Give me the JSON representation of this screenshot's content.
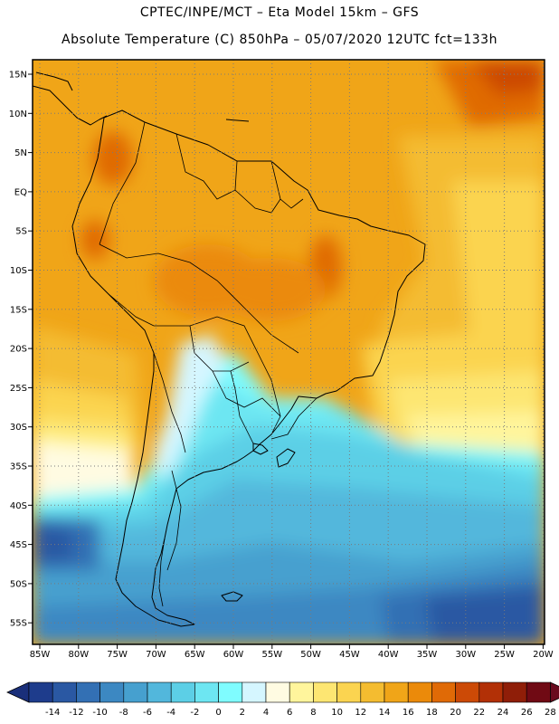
{
  "header": {
    "line1": "CPTEC/INPE/MCT –  Eta Model 15km – GFS",
    "line2": "Absolute Temperature (C) 850hPa – 05/07/2020 12UTC fct=133h"
  },
  "map": {
    "lat_labels": [
      "15N",
      "10N",
      "5N",
      "EQ",
      "5S",
      "10S",
      "15S",
      "20S",
      "25S",
      "30S",
      "35S",
      "40S",
      "45S",
      "50S",
      "55S"
    ],
    "lon_labels": [
      "85W",
      "80W",
      "75W",
      "70W",
      "65W",
      "60W",
      "55W",
      "50W",
      "45W",
      "40W",
      "35W",
      "30W",
      "25W",
      "20W"
    ]
  },
  "colorbar": {
    "labels": [
      "-14",
      "-12",
      "-10",
      "-8",
      "-6",
      "-4",
      "-2",
      "0",
      "2",
      "4",
      "6",
      "8",
      "10",
      "12",
      "14",
      "16",
      "18",
      "20",
      "22",
      "24",
      "26",
      "28"
    ],
    "colors": [
      "#1e3c8c",
      "#2a58a3",
      "#3370b4",
      "#3c88c2",
      "#46a0cf",
      "#52b7dc",
      "#5ccfe6",
      "#6de6f2",
      "#7ffcff",
      "#d5f6ff",
      "#fffbe2",
      "#fff59c",
      "#fde672",
      "#fbd450",
      "#f4bc30",
      "#f0a518",
      "#eb8a0a",
      "#e06a06",
      "#cc4a06",
      "#b23006",
      "#8f1e08",
      "#700a14"
    ]
  }
}
